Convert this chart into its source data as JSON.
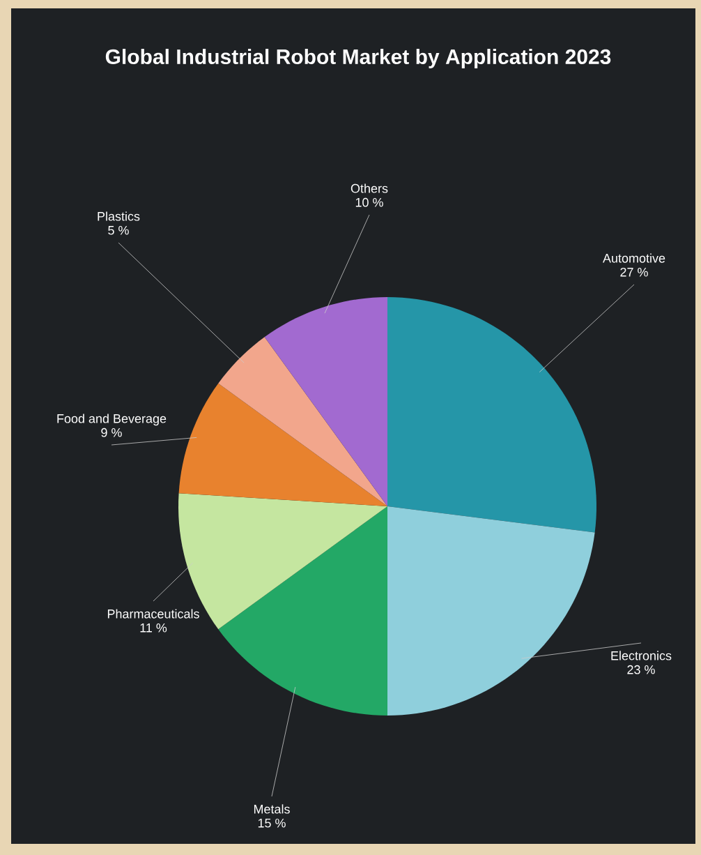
{
  "chart_data": {
    "type": "pie",
    "title": "Global Industrial Robot Market by Application 2023",
    "categories": [
      "Automotive",
      "Electronics",
      "Metals",
      "Pharmaceuticals",
      "Food and Beverage",
      "Plastics",
      "Others"
    ],
    "values": [
      27,
      23,
      15,
      11,
      9,
      5,
      10
    ],
    "value_labels": [
      "27 %",
      "23 %",
      "15 %",
      "11 %",
      "9 %",
      "5 %",
      "10 %"
    ],
    "colors": [
      "#2596a8",
      "#8fcfdc",
      "#23a866",
      "#c5e6a0",
      "#e8822e",
      "#f2a68c",
      "#a26ad0"
    ]
  }
}
